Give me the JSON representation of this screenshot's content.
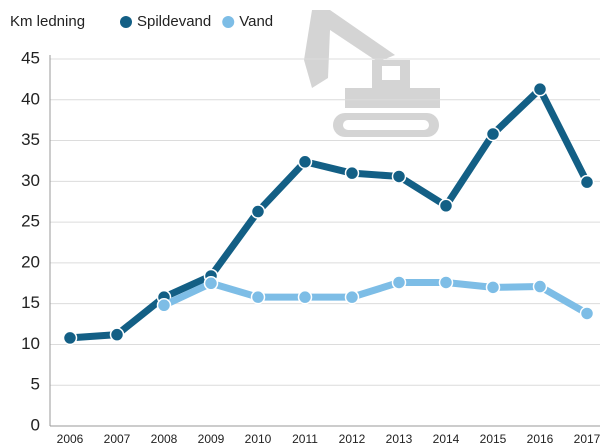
{
  "chart_data": {
    "type": "line",
    "title": "Km ledning",
    "categories": [
      "2006",
      "2007",
      "2008",
      "2009",
      "2010",
      "2011",
      "2012",
      "2013",
      "2014",
      "2015",
      "2016",
      "2017"
    ],
    "series": [
      {
        "name": "Spildevand",
        "color": "#135f85",
        "values": [
          10.8,
          11.2,
          15.8,
          18.4,
          26.3,
          32.4,
          31.0,
          30.6,
          27.0,
          35.8,
          41.3,
          29.9
        ]
      },
      {
        "name": "Vand",
        "color": "#7dbde6",
        "values": [
          null,
          null,
          14.8,
          17.5,
          15.8,
          15.8,
          15.8,
          17.6,
          17.6,
          17.0,
          17.1,
          13.8
        ]
      }
    ],
    "ylim": [
      0,
      45
    ],
    "yticks": [
      0,
      5,
      10,
      15,
      20,
      25,
      30,
      35,
      40,
      45
    ],
    "grid": true
  }
}
